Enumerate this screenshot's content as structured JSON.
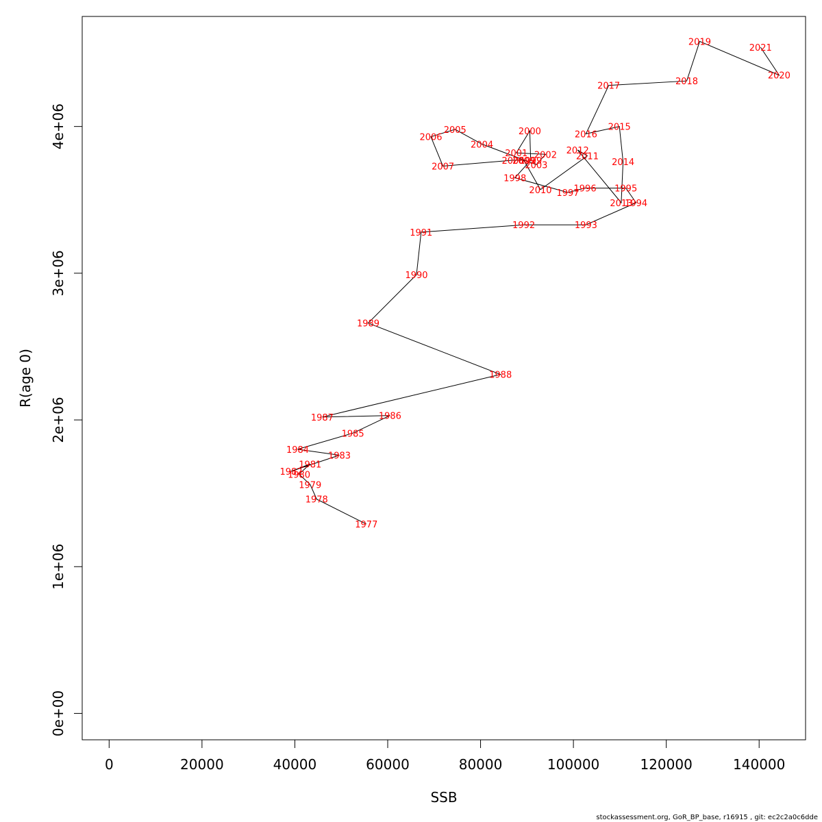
{
  "chart_data": {
    "type": "line",
    "xlabel": "SSB",
    "ylabel": "R(age 0)",
    "xlim": [
      -5800,
      150000
    ],
    "ylim": [
      -180000,
      4750000
    ],
    "x_ticks": [
      0,
      20000,
      40000,
      60000,
      80000,
      100000,
      120000,
      140000
    ],
    "x_tick_labels": [
      "0",
      "20000",
      "40000",
      "60000",
      "80000",
      "100000",
      "120000",
      "140000"
    ],
    "y_ticks": [
      0,
      1000000,
      2000000,
      3000000,
      4000000
    ],
    "y_tick_labels": [
      "0e+00",
      "1e+06",
      "2e+06",
      "3e+06",
      "4e+06"
    ],
    "line_color": "#000000",
    "label_color": "#ff0000",
    "points": [
      {
        "label": "1977",
        "x": 55400,
        "y": 1290000
      },
      {
        "label": "1978",
        "x": 44700,
        "y": 1460000
      },
      {
        "label": "1979",
        "x": 43300,
        "y": 1560000
      },
      {
        "label": "1980",
        "x": 40900,
        "y": 1630000
      },
      {
        "label": "1981",
        "x": 43300,
        "y": 1700000
      },
      {
        "label": "1982",
        "x": 39200,
        "y": 1650000
      },
      {
        "label": "1983",
        "x": 49600,
        "y": 1760000
      },
      {
        "label": "1984",
        "x": 40600,
        "y": 1800000
      },
      {
        "label": "1985",
        "x": 52500,
        "y": 1910000
      },
      {
        "label": "1986",
        "x": 60500,
        "y": 2030000
      },
      {
        "label": "1987",
        "x": 45900,
        "y": 2020000
      },
      {
        "label": "1988",
        "x": 84300,
        "y": 2310000
      },
      {
        "label": "1989",
        "x": 55800,
        "y": 2660000
      },
      {
        "label": "1990",
        "x": 66200,
        "y": 2990000
      },
      {
        "label": "1991",
        "x": 67200,
        "y": 3280000
      },
      {
        "label": "1992",
        "x": 89300,
        "y": 3330000
      },
      {
        "label": "1993",
        "x": 102700,
        "y": 3330000
      },
      {
        "label": "1994",
        "x": 113500,
        "y": 3480000
      },
      {
        "label": "1995",
        "x": 111300,
        "y": 3580000
      },
      {
        "label": "1996",
        "x": 102500,
        "y": 3580000
      },
      {
        "label": "1997",
        "x": 98800,
        "y": 3550000
      },
      {
        "label": "1998",
        "x": 87400,
        "y": 3650000
      },
      {
        "label": "1999",
        "x": 90800,
        "y": 3770000
      },
      {
        "label": "2000",
        "x": 90600,
        "y": 3970000
      },
      {
        "label": "2001",
        "x": 87700,
        "y": 3820000
      },
      {
        "label": "2002",
        "x": 94000,
        "y": 3810000
      },
      {
        "label": "2003",
        "x": 92000,
        "y": 3740000
      },
      {
        "label": "2004",
        "x": 80300,
        "y": 3880000
      },
      {
        "label": "2005",
        "x": 74500,
        "y": 3980000
      },
      {
        "label": "2006",
        "x": 69300,
        "y": 3930000
      },
      {
        "label": "2007",
        "x": 71900,
        "y": 3730000
      },
      {
        "label": "2008",
        "x": 87000,
        "y": 3770000
      },
      {
        "label": "2009",
        "x": 89300,
        "y": 3770000
      },
      {
        "label": "2010",
        "x": 92900,
        "y": 3570000
      },
      {
        "label": "2011",
        "x": 103000,
        "y": 3800000
      },
      {
        "label": "2012",
        "x": 100900,
        "y": 3840000
      },
      {
        "label": "2013",
        "x": 110300,
        "y": 3480000
      },
      {
        "label": "2014",
        "x": 110700,
        "y": 3760000
      },
      {
        "label": "2015",
        "x": 109900,
        "y": 4000000
      },
      {
        "label": "2016",
        "x": 102700,
        "y": 3950000
      },
      {
        "label": "2017",
        "x": 107600,
        "y": 4280000
      },
      {
        "label": "2018",
        "x": 124400,
        "y": 4310000
      },
      {
        "label": "2019",
        "x": 127200,
        "y": 4580000
      },
      {
        "label": "2020",
        "x": 144300,
        "y": 4350000
      },
      {
        "label": "2021",
        "x": 140300,
        "y": 4540000
      }
    ]
  },
  "footer_text": "stockassessment.org, GoR_BP_base, r16915 , git: ec2c2a0c6dde"
}
